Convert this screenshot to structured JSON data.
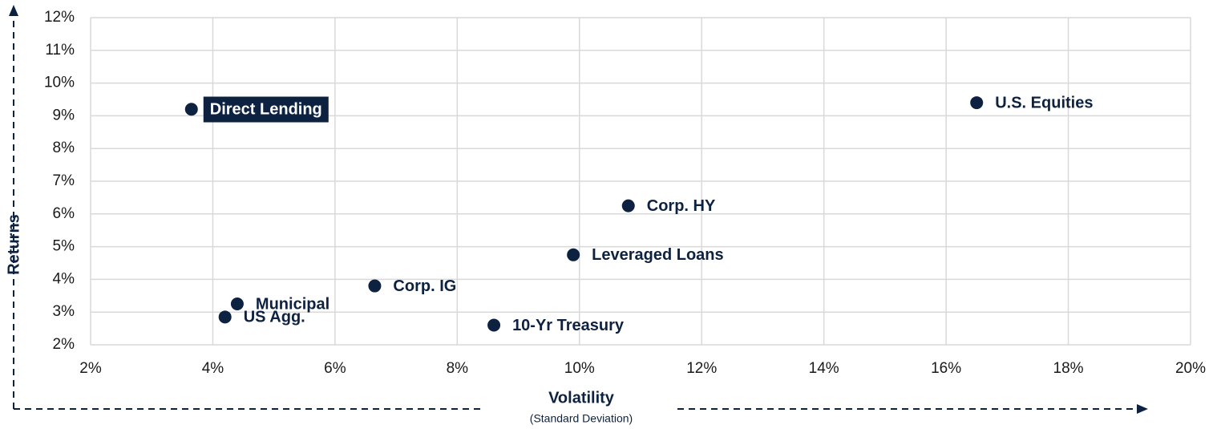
{
  "chart_data": {
    "type": "scatter",
    "y_label": "Returns",
    "x_label": "Volatility",
    "x_sublabel": "(Standard Deviation)",
    "labels": [
      "Direct Lending",
      "U.S. Equities",
      "Corp. HY",
      "Leveraged Loans",
      "Corp. IG",
      "Municipal",
      "US Agg.",
      "10-Yr Treasury"
    ],
    "x": [
      3.65,
      16.5,
      10.8,
      9.9,
      6.65,
      4.4,
      4.2,
      8.6
    ],
    "y": [
      9.2,
      9.4,
      6.25,
      4.75,
      3.8,
      3.25,
      2.85,
      2.6
    ],
    "color": "#0d2240",
    "highlighted": "Direct Lending",
    "xlim": [
      2,
      20
    ],
    "xticks": [
      {
        "value": 2,
        "label": "2%"
      },
      {
        "value": 4,
        "label": "4%"
      },
      {
        "value": 6,
        "label": "6%"
      },
      {
        "value": 8,
        "label": "8%"
      },
      {
        "value": 10,
        "label": "10%"
      },
      {
        "value": 12,
        "label": "12%"
      },
      {
        "value": 14,
        "label": "14%"
      },
      {
        "value": 16,
        "label": "16%"
      },
      {
        "value": 18,
        "label": "18%"
      },
      {
        "value": 20,
        "label": "20%"
      }
    ],
    "ylim": [
      2,
      12
    ],
    "yticks": [
      {
        "value": 2,
        "label": "2%"
      },
      {
        "value": 3,
        "label": "3%"
      },
      {
        "value": 4,
        "label": "4%"
      },
      {
        "value": 5,
        "label": "5%"
      },
      {
        "value": 6,
        "label": "6%"
      },
      {
        "value": 7,
        "label": "7%"
      },
      {
        "value": 8,
        "label": "8%"
      },
      {
        "value": 9,
        "label": "9%"
      },
      {
        "value": 10,
        "label": "10%"
      },
      {
        "value": 11,
        "label": "11%"
      },
      {
        "value": 12,
        "label": "12%"
      }
    ],
    "grid": true
  }
}
